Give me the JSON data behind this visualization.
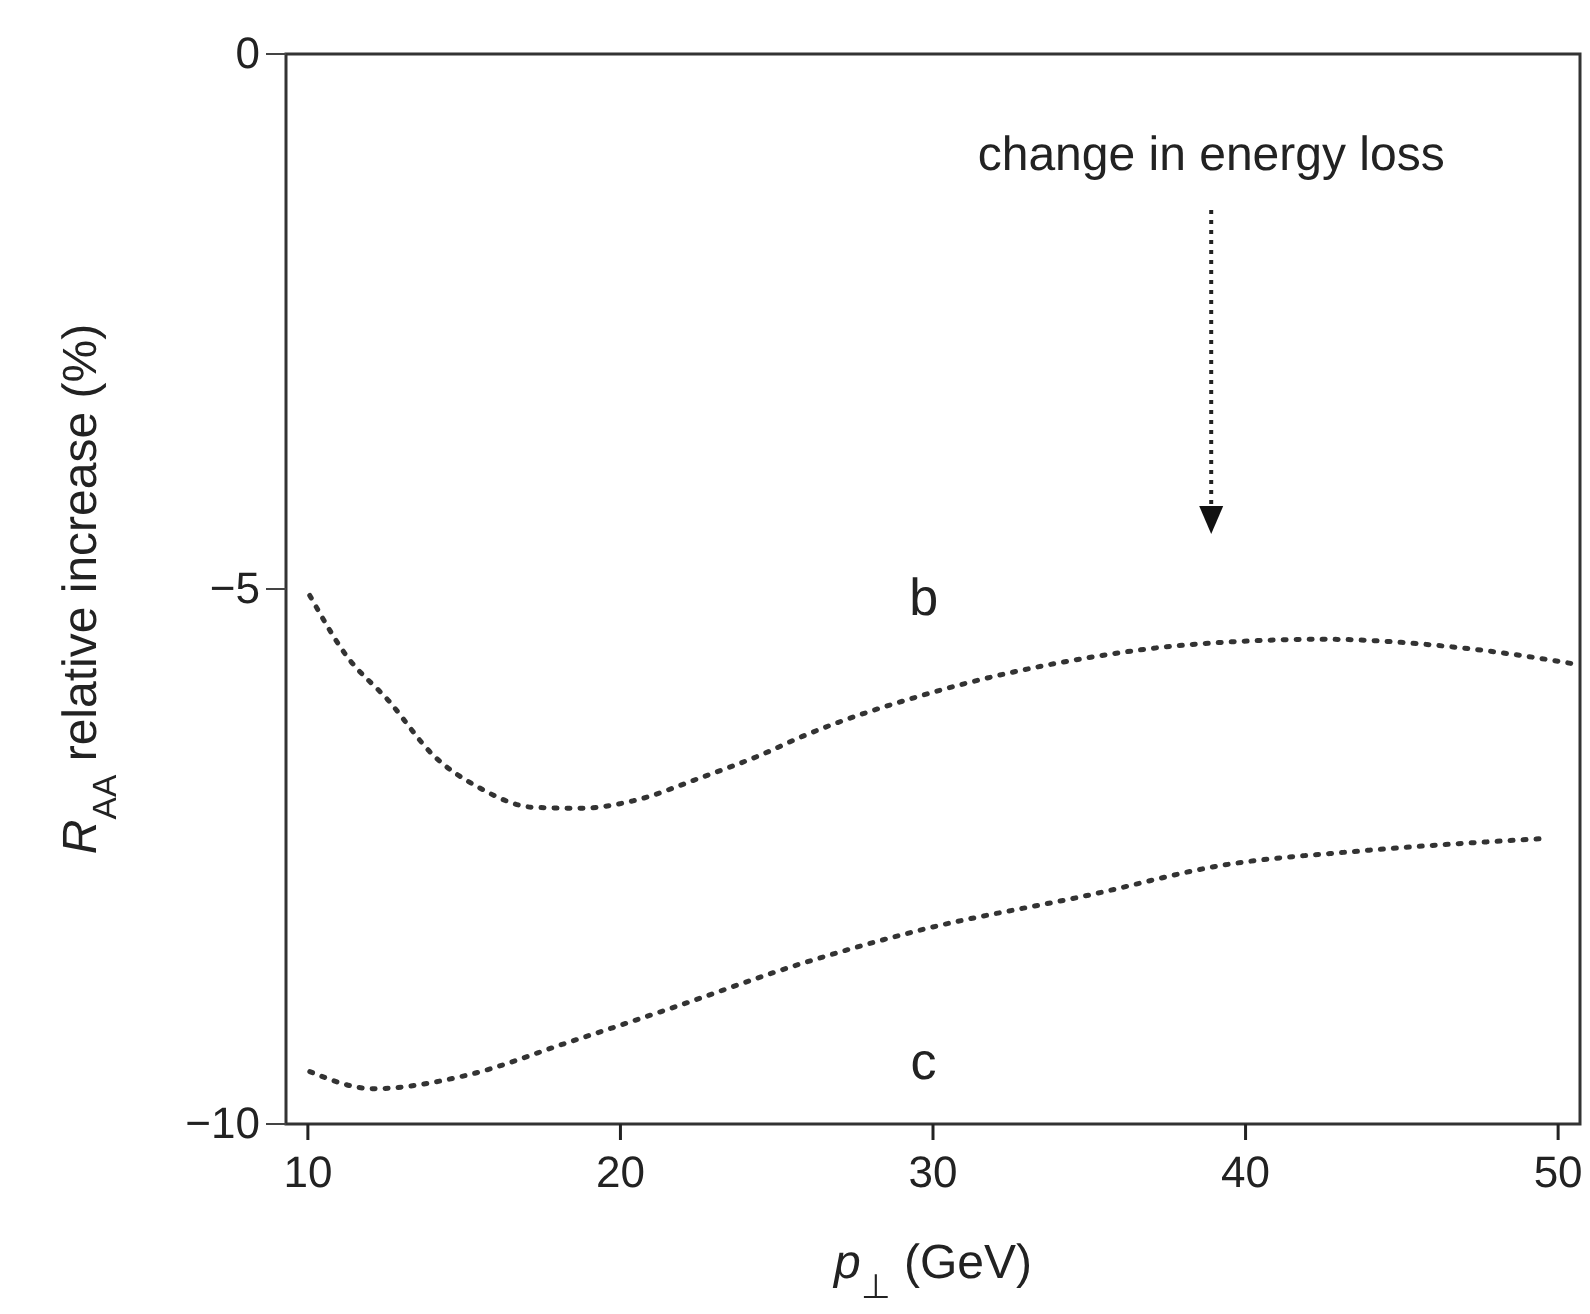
{
  "chart_data": {
    "type": "line",
    "xlabel": "p$_{⊥}$ (GeV)",
    "ylabel": "R$_{AA}$ relative increase (%)",
    "xlim": [
      9.3,
      50.7
    ],
    "xticks": [
      10,
      20,
      30,
      40,
      50
    ],
    "ylim": [
      -10,
      0
    ],
    "yticks": [
      {
        "value": -10,
        "label": "−10"
      },
      {
        "value": -5,
        "label": "−5"
      },
      0
    ],
    "line_style": "dotted",
    "marker": "none",
    "grid": false,
    "legend": false,
    "annotations": [
      "change in energy loss"
    ],
    "series": [
      {
        "name": "b",
        "color": "#333333",
        "x": [
          10.06,
          11.2,
          12.6,
          14.0,
          15.5,
          17.2,
          18.7,
          20.4,
          22.6,
          24.5,
          25.8,
          29.7,
          35.0,
          38.2,
          42.5,
          46.9,
          50.1,
          50.7
        ],
        "values": [
          -5.06,
          -5.61,
          -6.05,
          -6.55,
          -6.86,
          -7.04,
          -7.05,
          -6.98,
          -6.76,
          -6.55,
          -6.38,
          -5.99,
          -5.64,
          -5.52,
          -5.47,
          -5.55,
          -5.68,
          -5.71
        ]
      },
      {
        "name": "c",
        "color": "#333333",
        "x": [
          10.06,
          12.1,
          15.0,
          18.3,
          21.5,
          25.8,
          29.7,
          35.0,
          39.3,
          43.6,
          49.7
        ],
        "values": [
          -9.51,
          -9.67,
          -9.55,
          -9.24,
          -8.93,
          -8.5,
          -8.18,
          -7.86,
          -7.58,
          -7.45,
          -7.33
        ]
      }
    ]
  }
}
